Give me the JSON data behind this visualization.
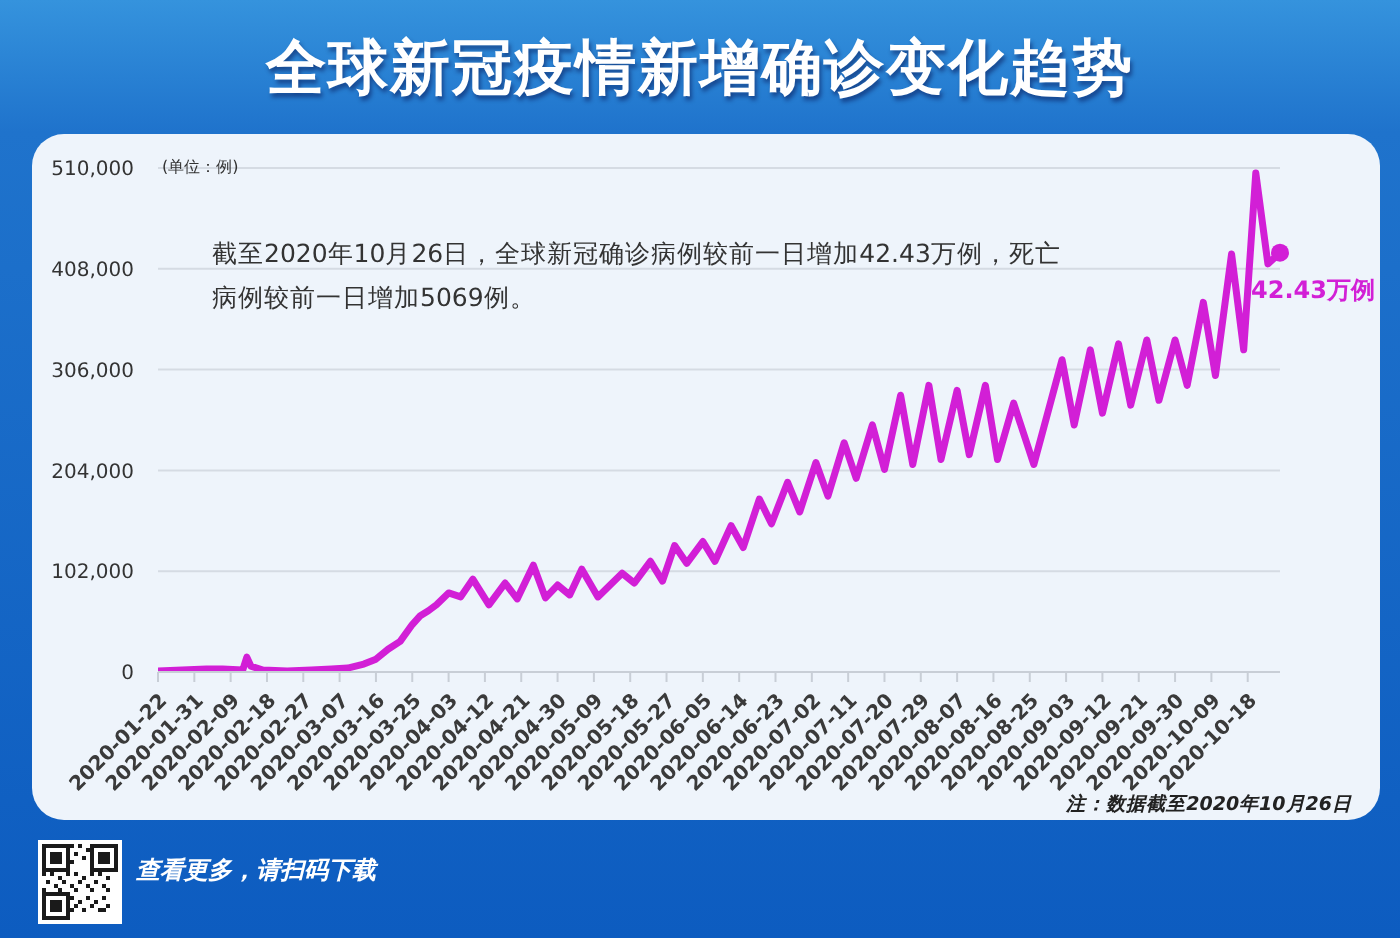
{
  "chart_data": {
    "type": "line",
    "title": "全球新冠疫情新增确诊变化趋势",
    "ylabel": "(单位：例)",
    "annotations": [
      "截至2020年10月26日，全球新冠确诊病例较前一日增加42.43万例，死亡病例较前一日增加5069例。",
      {
        "text": "42.43万例",
        "x": "2020-10-26",
        "y": 424300
      },
      "注：数据截至2020年10月26日",
      "查看更多，请扫码下载"
    ],
    "x": [
      "2020-01-22",
      "2020-01-28",
      "2020-02-03",
      "2020-02-07",
      "2020-02-12",
      "2020-02-13",
      "2020-02-14",
      "2020-02-17",
      "2020-02-23",
      "2020-02-29",
      "2020-03-05",
      "2020-03-09",
      "2020-03-13",
      "2020-03-16",
      "2020-03-19",
      "2020-03-22",
      "2020-03-25",
      "2020-03-27",
      "2020-03-29",
      "2020-03-31",
      "2020-04-03",
      "2020-04-06",
      "2020-04-09",
      "2020-04-13",
      "2020-04-17",
      "2020-04-20",
      "2020-04-24",
      "2020-04-27",
      "2020-04-30",
      "2020-05-03",
      "2020-05-06",
      "2020-05-10",
      "2020-05-16",
      "2020-05-19",
      "2020-05-23",
      "2020-05-26",
      "2020-05-29",
      "2020-06-01",
      "2020-06-05",
      "2020-06-08",
      "2020-06-12",
      "2020-06-15",
      "2020-06-19",
      "2020-06-22",
      "2020-06-26",
      "2020-06-29",
      "2020-07-03",
      "2020-07-06",
      "2020-07-10",
      "2020-07-13",
      "2020-07-17",
      "2020-07-20",
      "2020-07-24",
      "2020-07-27",
      "2020-07-31",
      "2020-08-03",
      "2020-08-07",
      "2020-08-10",
      "2020-08-14",
      "2020-08-17",
      "2020-08-21",
      "2020-08-26",
      "2020-09-02",
      "2020-09-05",
      "2020-09-09",
      "2020-09-12",
      "2020-09-16",
      "2020-09-19",
      "2020-09-23",
      "2020-09-26",
      "2020-09-30",
      "2020-10-03",
      "2020-10-07",
      "2020-10-10",
      "2020-10-14",
      "2020-10-17",
      "2020-10-20",
      "2020-10-23",
      "2020-10-26"
    ],
    "values": [
      1000,
      2000,
      3000,
      3000,
      2000,
      15000,
      6000,
      2000,
      1000,
      2000,
      3000,
      4000,
      8000,
      13000,
      23000,
      31000,
      48000,
      57000,
      62000,
      68000,
      80000,
      76000,
      94000,
      68000,
      90000,
      74000,
      108000,
      75000,
      88000,
      78000,
      104000,
      76000,
      100000,
      90000,
      112000,
      92000,
      128000,
      110000,
      132000,
      112000,
      148000,
      126000,
      175000,
      150000,
      192000,
      162000,
      212000,
      178000,
      232000,
      196000,
      250000,
      205000,
      280000,
      210000,
      290000,
      215000,
      285000,
      220000,
      290000,
      215000,
      272000,
      210000,
      316000,
      250000,
      326000,
      262000,
      332000,
      270000,
      336000,
      275000,
      336000,
      290000,
      374000,
      300000,
      423000,
      326000,
      505000,
      413000,
      424300
    ],
    "color": "#d21fd6",
    "xlim": [
      "2020-01-22",
      "2020-10-26"
    ],
    "xticks": [
      "2020-01-22",
      "2020-01-31",
      "2020-02-09",
      "2020-02-18",
      "2020-02-27",
      "2020-03-07",
      "2020-03-16",
      "2020-03-25",
      "2020-04-03",
      "2020-04-12",
      "2020-04-21",
      "2020-04-30",
      "2020-05-09",
      "2020-05-18",
      "2020-05-27",
      "2020-06-05",
      "2020-06-14",
      "2020-06-23",
      "2020-07-02",
      "2020-07-11",
      "2020-07-20",
      "2020-07-29",
      "2020-08-07",
      "2020-08-16",
      "2020-08-25",
      "2020-09-03",
      "2020-09-12",
      "2020-09-21",
      "2020-09-30",
      "2020-10-09",
      "2020-10-18"
    ],
    "ylim": [
      0,
      510000
    ],
    "yticks": [
      0,
      {
        "value": 102000,
        "label": "102,000"
      },
      {
        "value": 204000,
        "label": "204,000"
      },
      {
        "value": 306000,
        "label": "306,000"
      },
      {
        "value": 408000,
        "label": "408,000"
      },
      {
        "value": 510000,
        "label": "510,000"
      }
    ],
    "grid": "y",
    "marker": "none"
  }
}
